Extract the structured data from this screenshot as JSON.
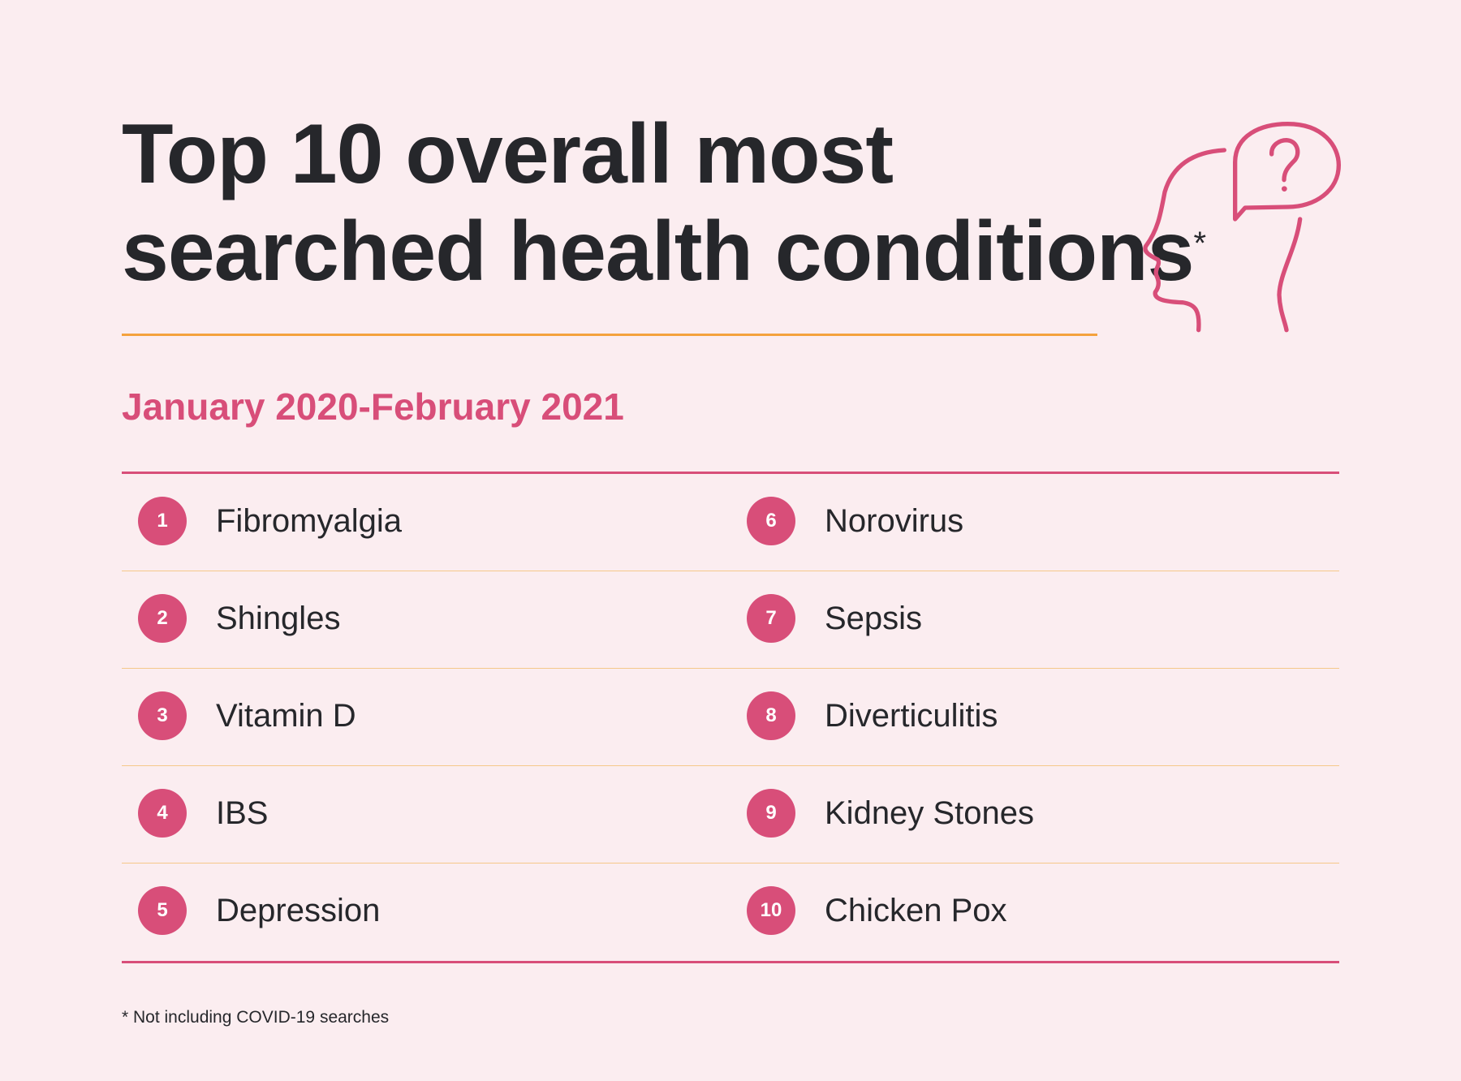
{
  "title": {
    "line1": "Top 10 overall most",
    "line2": "searched health conditions",
    "asterisk": "*"
  },
  "subtitle": "January 2020-February 2021",
  "items": [
    {
      "rank": "1",
      "name": "Fibromyalgia"
    },
    {
      "rank": "2",
      "name": "Shingles"
    },
    {
      "rank": "3",
      "name": "Vitamin D"
    },
    {
      "rank": "4",
      "name": "IBS"
    },
    {
      "rank": "5",
      "name": "Depression"
    },
    {
      "rank": "6",
      "name": "Norovirus"
    },
    {
      "rank": "7",
      "name": "Sepsis"
    },
    {
      "rank": "8",
      "name": "Diverticulitis"
    },
    {
      "rank": "9",
      "name": "Kidney Stones"
    },
    {
      "rank": "10",
      "name": "Chicken Pox"
    }
  ],
  "footnote": "* Not including COVID-19 searches",
  "colors": {
    "accent": "#d84e79",
    "rule": "#f4a23d",
    "background": "#fbedf0",
    "text": "#26272b"
  },
  "icon": "head-question-bubble-icon"
}
